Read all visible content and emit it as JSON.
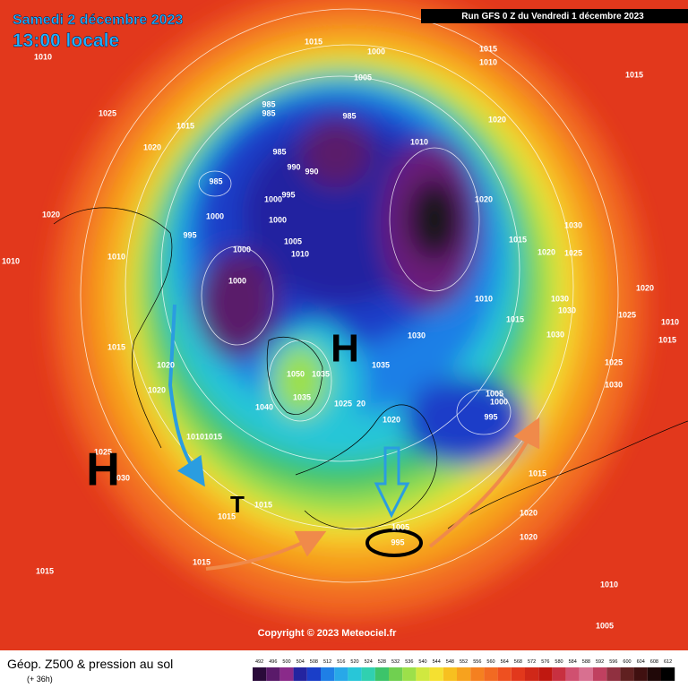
{
  "header": {
    "date": "Samedi 2 décembre 2023",
    "time": "13:00 locale",
    "run": "Run GFS 0 Z du Vendredi 1 décembre 2023"
  },
  "map": {
    "systems": [
      "H",
      "H",
      "T"
    ],
    "pressure_labels": [
      1015,
      1010,
      1000,
      1015,
      1010,
      1005,
      1015,
      1025,
      1015,
      985,
      985,
      985,
      1020,
      1020,
      1010,
      985,
      990,
      990,
      985,
      995,
      1000,
      1020,
      1020,
      1000,
      1000,
      1030,
      995,
      1005,
      1015,
      1000,
      1010,
      1020,
      1025,
      1010,
      1010,
      1000,
      1020,
      1030,
      1010,
      1030,
      1025,
      1010,
      1015,
      1030,
      1030,
      1015,
      1015,
      1020,
      1035,
      1050,
      1035,
      1025,
      1030,
      1020,
      1035,
      1005,
      1000,
      1040,
      1025,
      20,
      995,
      1020,
      1015,
      1010,
      1025,
      1030,
      1015,
      1015,
      1015,
      1020,
      1020,
      1005,
      995,
      1015,
      1015,
      1010,
      1005
    ],
    "copyright": "Copyright © 2023 Meteociel.fr"
  },
  "footer": {
    "title": "Géop. Z500 & pression au sol",
    "lead": "(+ 36h)",
    "scale": [
      492,
      496,
      500,
      504,
      508,
      512,
      516,
      520,
      524,
      528,
      532,
      536,
      540,
      544,
      548,
      552,
      556,
      560,
      564,
      568,
      572,
      576,
      580,
      584,
      588,
      592,
      596,
      600,
      604,
      608,
      612
    ]
  }
}
